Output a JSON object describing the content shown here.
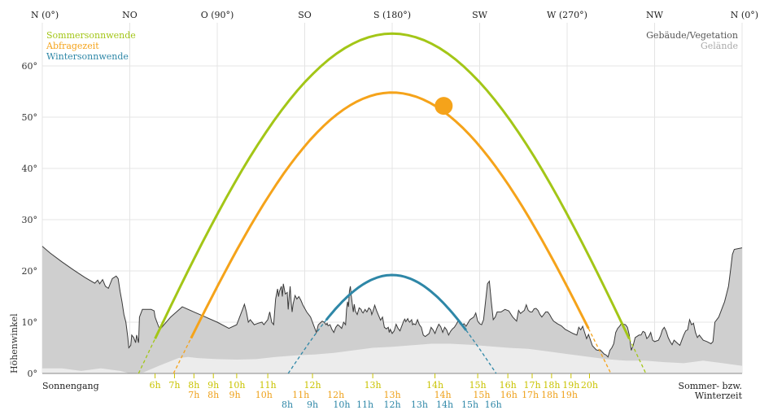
{
  "chart_data": {
    "type": "line",
    "ylabel": "Höhenwinkel",
    "ylim": [
      0,
      73
    ],
    "xlim": [
      0,
      360
    ],
    "y_ticks": [
      {
        "v": 0,
        "label": "0°"
      },
      {
        "v": 10,
        "label": "10°"
      },
      {
        "v": 20,
        "label": "20°"
      },
      {
        "v": 30,
        "label": "30°"
      },
      {
        "v": 40,
        "label": "40°"
      },
      {
        "v": 50,
        "label": "50°"
      },
      {
        "v": 60,
        "label": "60°"
      }
    ],
    "directions": [
      {
        "az": 0,
        "label": "N (0°)"
      },
      {
        "az": 45,
        "label": "NO"
      },
      {
        "az": 90,
        "label": "O (90°)"
      },
      {
        "az": 135,
        "label": "SO"
      },
      {
        "az": 180,
        "label": "S (180°)"
      },
      {
        "az": 225,
        "label": "SW"
      },
      {
        "az": 270,
        "label": "W (270°)"
      },
      {
        "az": 315,
        "label": "NW"
      },
      {
        "az": 360,
        "label": "N (0°)"
      }
    ],
    "legend": {
      "left": [
        {
          "label": "Sommersonnwende",
          "color": "#a3c617"
        },
        {
          "label": "Abfragezeit",
          "color": "#f5a31a"
        },
        {
          "label": "Wintersonnwende",
          "color": "#2e87a7"
        }
      ],
      "right": [
        {
          "label": "Gebäude/Vegetation",
          "color": "#555555"
        },
        {
          "label": "Gelände",
          "color": "#aaaaaa"
        }
      ]
    },
    "bottom_left_label": "Sonnengang",
    "bottom_right_label": [
      "Sommer- bzw.",
      "Winterzeit"
    ],
    "series": [
      {
        "name": "Sommersonnwende",
        "color": "#a3c617",
        "peak_az": 180,
        "peak_alt": 66.3,
        "rise_az": 49.5,
        "set_az": 310.5,
        "visible_from_az": 58,
        "visible_to_az": 302
      },
      {
        "name": "Abfragezeit",
        "color": "#f5a31a",
        "peak_az": 180,
        "peak_alt": 54.8,
        "rise_az": 67.5,
        "set_az": 292.5,
        "visible_from_az": 76.5,
        "visible_to_az": 281
      },
      {
        "name": "Wintersonnwende",
        "color": "#2e87a7",
        "peak_az": 180,
        "peak_alt": 19.2,
        "rise_az": 126.5,
        "set_az": 233.5,
        "visible_from_az": 146,
        "visible_to_az": 218
      }
    ],
    "current_sun": {
      "az": 206.5,
      "alt": 52.2,
      "color": "#f5a31a"
    },
    "horizon_buildings": [
      [
        0,
        24.8
      ],
      [
        4,
        23.5
      ],
      [
        10,
        21.8
      ],
      [
        16,
        20.2
      ],
      [
        22,
        18.7
      ],
      [
        27,
        17.6
      ],
      [
        28.5,
        18.2
      ],
      [
        29.5,
        17.5
      ],
      [
        31,
        18.3
      ],
      [
        32.5,
        17
      ],
      [
        34,
        16.6
      ],
      [
        36,
        18.5
      ],
      [
        38,
        19
      ],
      [
        39,
        18.5
      ],
      [
        40,
        16
      ],
      [
        41,
        14
      ],
      [
        42,
        11.5
      ],
      [
        43,
        10
      ],
      [
        44,
        7
      ],
      [
        44.5,
        5
      ],
      [
        45.5,
        5.5
      ],
      [
        46,
        7.5
      ],
      [
        47,
        7
      ],
      [
        48,
        6
      ],
      [
        48.5,
        7.5
      ],
      [
        49.5,
        6
      ],
      [
        50,
        11
      ],
      [
        51.5,
        12.5
      ],
      [
        53,
        12.5
      ],
      [
        56,
        12.5
      ],
      [
        57.5,
        12.2
      ],
      [
        58,
        11
      ],
      [
        59,
        10
      ],
      [
        60,
        9
      ],
      [
        61,
        8.8
      ],
      [
        66,
        11
      ],
      [
        72,
        13
      ],
      [
        78,
        12
      ],
      [
        84,
        11
      ],
      [
        90,
        10
      ],
      [
        96,
        8.8
      ],
      [
        100,
        9.5
      ],
      [
        101,
        10.5
      ],
      [
        102,
        11.5
      ],
      [
        103,
        12.5
      ],
      [
        104,
        13.5
      ],
      [
        105,
        12
      ],
      [
        106,
        10
      ],
      [
        107,
        10.5
      ],
      [
        109,
        9.5
      ],
      [
        111,
        9.8
      ],
      [
        113,
        10
      ],
      [
        114,
        9.5
      ],
      [
        116,
        10.5
      ],
      [
        117,
        12
      ],
      [
        118,
        10
      ],
      [
        119,
        9.5
      ],
      [
        120,
        14.5
      ],
      [
        121,
        16.5
      ],
      [
        121.5,
        15
      ],
      [
        122,
        16
      ],
      [
        123,
        17
      ],
      [
        123.5,
        15
      ],
      [
        124,
        17.5
      ],
      [
        125,
        15.5
      ],
      [
        126,
        15.8
      ],
      [
        126.5,
        12.5
      ],
      [
        127,
        15
      ],
      [
        127.5,
        17
      ],
      [
        128,
        14
      ],
      [
        128.5,
        12
      ],
      [
        129,
        13.5
      ],
      [
        130,
        15.2
      ],
      [
        131,
        14.5
      ],
      [
        132,
        15
      ],
      [
        133,
        14.3
      ],
      [
        134,
        13.4
      ],
      [
        136,
        12
      ],
      [
        138,
        11
      ],
      [
        140,
        9
      ],
      [
        141,
        8
      ],
      [
        142,
        9.5
      ],
      [
        144,
        10.2
      ],
      [
        145,
        10
      ],
      [
        146,
        9.5
      ],
      [
        146.5,
        9.8
      ],
      [
        147,
        9.3
      ],
      [
        148,
        9.5
      ],
      [
        149,
        8.6
      ],
      [
        150,
        8
      ],
      [
        151,
        9
      ],
      [
        152,
        9.5
      ],
      [
        153,
        9.2
      ],
      [
        154,
        8.8
      ],
      [
        155,
        10
      ],
      [
        156,
        9.5
      ],
      [
        156.5,
        12.5
      ],
      [
        157,
        14
      ],
      [
        157.5,
        13
      ],
      [
        158,
        16
      ],
      [
        158.5,
        17
      ],
      [
        159,
        15
      ],
      [
        160,
        12
      ],
      [
        160.5,
        13.5
      ],
      [
        161,
        12.2
      ],
      [
        162,
        11.5
      ],
      [
        163,
        12.8
      ],
      [
        164,
        12.5
      ],
      [
        164.5,
        12
      ],
      [
        165,
        11.8
      ],
      [
        166,
        12.5
      ],
      [
        167,
        12
      ],
      [
        168,
        12.8
      ],
      [
        169,
        12.4
      ],
      [
        169.5,
        11.5
      ],
      [
        170,
        12
      ],
      [
        171,
        13.3
      ],
      [
        172,
        12.2
      ],
      [
        173,
        11.3
      ],
      [
        174,
        10.4
      ],
      [
        175,
        11
      ],
      [
        176,
        9
      ],
      [
        177,
        8.7
      ],
      [
        178,
        9
      ],
      [
        178.5,
        8
      ],
      [
        179,
        8.6
      ],
      [
        180,
        7.8
      ],
      [
        181,
        8.3
      ],
      [
        182,
        9.6
      ],
      [
        183,
        8.8
      ],
      [
        184,
        8.3
      ],
      [
        184.5,
        8.8
      ],
      [
        185,
        9.3
      ],
      [
        186,
        10.3
      ],
      [
        186.5,
        10.6
      ],
      [
        187,
        10.1
      ],
      [
        187.5,
        10.4
      ],
      [
        188,
        10.7
      ],
      [
        188.5,
        10.2
      ],
      [
        189,
        10
      ],
      [
        190,
        10.5
      ],
      [
        190.5,
        9.5
      ],
      [
        191,
        9.7
      ],
      [
        192,
        9.5
      ],
      [
        193,
        10.5
      ],
      [
        194,
        9.5
      ],
      [
        195,
        9
      ],
      [
        196,
        7.5
      ],
      [
        197,
        7.2
      ],
      [
        198,
        7.5
      ],
      [
        199,
        7.8
      ],
      [
        200,
        9
      ],
      [
        201,
        8.5
      ],
      [
        202,
        7.8
      ],
      [
        203,
        8.8
      ],
      [
        204,
        9.6
      ],
      [
        205,
        9.1
      ],
      [
        206,
        8
      ],
      [
        207,
        9
      ],
      [
        208,
        8.5
      ],
      [
        209,
        7.5
      ],
      [
        210,
        8.2
      ],
      [
        211,
        8.7
      ],
      [
        212,
        9
      ],
      [
        213,
        9.6
      ],
      [
        214,
        10.3
      ],
      [
        215,
        9.6
      ],
      [
        216,
        9.5
      ],
      [
        217,
        9.7
      ],
      [
        218,
        9.2
      ],
      [
        220,
        10.5
      ],
      [
        222,
        11
      ],
      [
        223,
        11.8
      ],
      [
        224,
        10.2
      ],
      [
        225,
        9.7
      ],
      [
        226,
        9.5
      ],
      [
        227,
        10.5
      ],
      [
        228,
        14
      ],
      [
        229,
        17.5
      ],
      [
        230,
        18
      ],
      [
        231,
        14
      ],
      [
        232,
        10.5
      ],
      [
        233,
        11
      ],
      [
        234,
        12
      ],
      [
        236,
        12
      ],
      [
        238,
        12.5
      ],
      [
        240,
        12.2
      ],
      [
        242,
        11
      ],
      [
        244,
        10.2
      ],
      [
        245,
        12.3
      ],
      [
        246,
        11.7
      ],
      [
        248,
        12.3
      ],
      [
        249,
        13.4
      ],
      [
        250,
        12.3
      ],
      [
        251,
        12
      ],
      [
        252,
        12
      ],
      [
        253,
        12.6
      ],
      [
        254,
        12.7
      ],
      [
        255,
        12.3
      ],
      [
        256,
        11.5
      ],
      [
        257,
        11
      ],
      [
        258,
        11.5
      ],
      [
        259,
        12
      ],
      [
        260,
        12
      ],
      [
        261,
        11.5
      ],
      [
        262,
        10.8
      ],
      [
        263,
        10.2
      ],
      [
        265,
        9.7
      ],
      [
        267,
        9.3
      ],
      [
        269,
        8.6
      ],
      [
        271,
        8.2
      ],
      [
        273,
        7.8
      ],
      [
        275,
        7.5
      ],
      [
        276,
        9
      ],
      [
        277,
        8.5
      ],
      [
        278,
        9.2
      ],
      [
        279,
        8
      ],
      [
        280,
        6.8
      ],
      [
        281,
        7.6
      ],
      [
        283,
        5.4
      ],
      [
        285,
        4.6
      ],
      [
        286,
        4.5
      ],
      [
        287,
        4.6
      ],
      [
        288,
        4.2
      ],
      [
        289,
        3.8
      ],
      [
        290,
        3.6
      ],
      [
        291,
        3.2
      ],
      [
        292,
        4.5
      ],
      [
        293,
        5
      ],
      [
        294,
        5.8
      ],
      [
        295,
        8
      ],
      [
        296,
        8.8
      ],
      [
        297,
        9.2
      ],
      [
        298,
        9.8
      ],
      [
        299,
        9.6
      ],
      [
        300,
        9.5
      ],
      [
        301,
        9
      ],
      [
        302,
        7.5
      ],
      [
        303,
        4.5
      ],
      [
        304,
        5.5
      ],
      [
        305,
        7
      ],
      [
        307,
        7.5
      ],
      [
        308,
        7.5
      ],
      [
        309,
        8.2
      ],
      [
        310,
        8
      ],
      [
        311,
        6.8
      ],
      [
        312,
        7.2
      ],
      [
        313,
        8
      ],
      [
        314,
        6.5
      ],
      [
        315,
        6.2
      ],
      [
        317,
        6.5
      ],
      [
        318,
        7.3
      ],
      [
        319,
        8.5
      ],
      [
        320,
        9
      ],
      [
        321,
        8.2
      ],
      [
        322,
        7
      ],
      [
        323,
        6.2
      ],
      [
        324,
        5.6
      ],
      [
        325,
        6.5
      ],
      [
        327,
        5.8
      ],
      [
        328,
        5.5
      ],
      [
        329,
        6.5
      ],
      [
        330,
        7.5
      ],
      [
        331,
        8.3
      ],
      [
        332,
        8.5
      ],
      [
        333,
        10.5
      ],
      [
        334,
        9.5
      ],
      [
        335,
        9.8
      ],
      [
        336,
        8
      ],
      [
        337,
        7
      ],
      [
        338,
        7.5
      ],
      [
        339,
        7
      ],
      [
        340,
        6.5
      ],
      [
        342,
        6.2
      ],
      [
        344,
        5.8
      ],
      [
        345,
        6.2
      ],
      [
        346,
        10
      ],
      [
        347,
        10.5
      ],
      [
        348,
        11
      ],
      [
        349,
        12
      ],
      [
        350,
        13
      ],
      [
        351,
        14
      ],
      [
        352,
        15.5
      ],
      [
        353,
        17
      ],
      [
        354,
        20
      ],
      [
        355,
        23.2
      ],
      [
        356,
        24.2
      ],
      [
        360,
        24.5
      ]
    ],
    "horizon_terrain": [
      [
        0,
        1
      ],
      [
        10,
        1
      ],
      [
        20,
        0.5
      ],
      [
        30,
        1
      ],
      [
        40,
        0.5
      ],
      [
        45,
        0
      ],
      [
        52,
        0.2
      ],
      [
        60,
        1.5
      ],
      [
        70,
        3
      ],
      [
        75,
        3.2
      ],
      [
        80,
        3
      ],
      [
        90,
        2.8
      ],
      [
        100,
        2.7
      ],
      [
        110,
        2.8
      ],
      [
        120,
        3.2
      ],
      [
        130,
        3.5
      ],
      [
        140,
        3.7
      ],
      [
        150,
        4
      ],
      [
        160,
        4.5
      ],
      [
        170,
        5
      ],
      [
        180,
        5.2
      ],
      [
        190,
        5.5
      ],
      [
        200,
        5.8
      ],
      [
        210,
        5.8
      ],
      [
        220,
        5.6
      ],
      [
        230,
        5.3
      ],
      [
        240,
        5
      ],
      [
        250,
        4.8
      ],
      [
        260,
        4.3
      ],
      [
        270,
        3.8
      ],
      [
        280,
        3.3
      ],
      [
        290,
        2.8
      ],
      [
        300,
        2.5
      ],
      [
        310,
        2.5
      ],
      [
        320,
        2.2
      ],
      [
        330,
        2
      ],
      [
        340,
        2.5
      ],
      [
        350,
        2
      ],
      [
        360,
        1.5
      ]
    ],
    "hour_rows": [
      {
        "color": "#c9c300",
        "labels": [
          {
            "az": 58,
            "label": "6h"
          },
          {
            "az": 68,
            "label": "7h"
          },
          {
            "az": 78,
            "label": "8h"
          },
          {
            "az": 88,
            "label": "9h"
          },
          {
            "az": 100,
            "label": "10h"
          },
          {
            "az": 116,
            "label": "11h"
          },
          {
            "az": 139,
            "label": "12h"
          },
          {
            "az": 170,
            "label": "13h"
          },
          {
            "az": 202,
            "label": "14h"
          },
          {
            "az": 224,
            "label": "15h"
          },
          {
            "az": 239.5,
            "label": "16h"
          },
          {
            "az": 252,
            "label": "17h"
          },
          {
            "az": 262,
            "label": "18h"
          },
          {
            "az": 272,
            "label": "19h"
          },
          {
            "az": 281.5,
            "label": "20h"
          }
        ]
      },
      {
        "color": "#eea11a",
        "labels": [
          {
            "az": 78,
            "label": "7h"
          },
          {
            "az": 88,
            "label": "8h"
          },
          {
            "az": 99,
            "label": "9h"
          },
          {
            "az": 114,
            "label": "10h"
          },
          {
            "az": 133,
            "label": "11h"
          },
          {
            "az": 151,
            "label": "12h"
          },
          {
            "az": 180,
            "label": "13h"
          },
          {
            "az": 206,
            "label": "14h"
          },
          {
            "az": 226,
            "label": "15h"
          },
          {
            "az": 240,
            "label": "16h"
          },
          {
            "az": 251,
            "label": "17h"
          },
          {
            "az": 261,
            "label": "18h"
          },
          {
            "az": 271,
            "label": "19h"
          }
        ]
      },
      {
        "color": "#2e87a7",
        "labels": [
          {
            "az": 126,
            "label": "8h"
          },
          {
            "az": 139,
            "label": "9h"
          },
          {
            "az": 154,
            "label": "10h"
          },
          {
            "az": 166,
            "label": "11h"
          },
          {
            "az": 180,
            "label": "12h"
          },
          {
            "az": 194,
            "label": "13h"
          },
          {
            "az": 207,
            "label": "14h"
          },
          {
            "az": 220,
            "label": "15h"
          },
          {
            "az": 232,
            "label": "16h"
          }
        ]
      }
    ]
  }
}
